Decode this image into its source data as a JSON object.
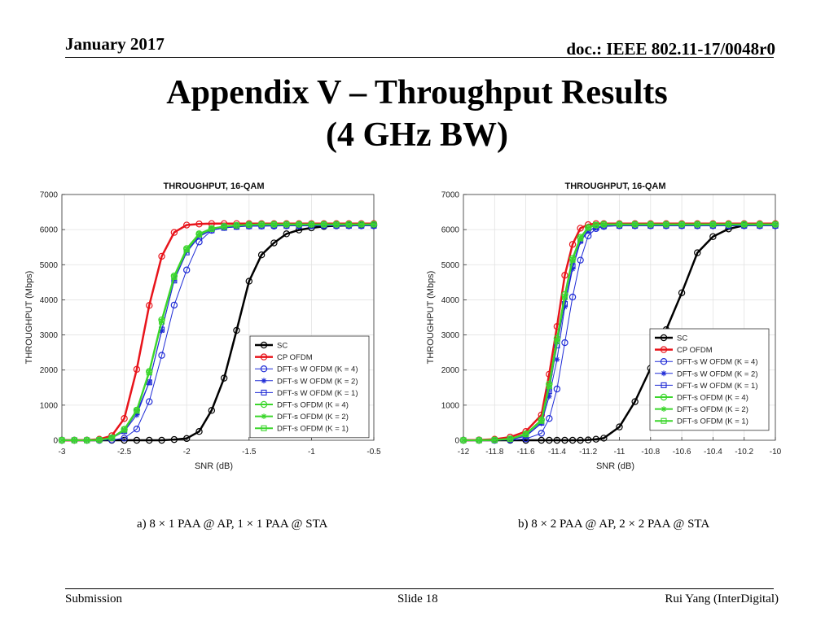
{
  "header": {
    "date": "January 2017",
    "doc": "doc.: IEEE 802.11-17/0048r0"
  },
  "title": {
    "line1": "Appendix V – Throughput Results",
    "line2": "(4 GHz BW)"
  },
  "captions": {
    "a": "a) 8 × 1 PAA @ AP, 1 × 1 PAA @ STA",
    "b": "b) 8 × 2 PAA @ AP, 2 × 2 PAA @ STA"
  },
  "footer": {
    "left": "Submission",
    "center": "Slide 18",
    "right": "Rui Yang (InterDigital)"
  },
  "chart_data": [
    {
      "type": "line",
      "title": "THROUGHPUT, 16-QAM",
      "xlabel": "SNR (dB)",
      "ylabel": "THROUGHPUT (Mbps)",
      "xlim": [
        -3,
        -0.5
      ],
      "ylim": [
        0,
        7000
      ],
      "xticks": [
        -3,
        -2.5,
        -2,
        -1.5,
        -1,
        -0.5
      ],
      "xtick_labels": [
        "-3",
        "-2.5",
        "-2",
        "-1.5",
        "-1",
        "-0.5"
      ],
      "yticks": [
        0,
        1000,
        2000,
        3000,
        4000,
        5000,
        6000,
        7000
      ],
      "grid": true,
      "legend": "center-right",
      "x": [
        -3,
        -2.9,
        -2.8,
        -2.7,
        -2.6,
        -2.5,
        -2.4,
        -2.3,
        -2.2,
        -2.1,
        -2.0,
        -1.9,
        -1.8,
        -1.7,
        -1.6,
        -1.5,
        -1.4,
        -1.3,
        -1.2,
        -1.1,
        -1.0,
        -0.9,
        -0.8,
        -0.7,
        -0.6,
        -0.5
      ],
      "series": [
        {
          "name": "SC",
          "color": "#000000",
          "marker": "circle",
          "width": 2.5,
          "values": [
            0,
            0,
            0,
            0,
            0,
            0,
            0,
            0,
            0,
            20,
            50,
            250,
            850,
            1770,
            3130,
            4530,
            5280,
            5620,
            5880,
            5990,
            6050,
            6090,
            6110,
            6120,
            6130,
            6130
          ]
        },
        {
          "name": "CP OFDM",
          "color": "#e8141b",
          "marker": "circle",
          "width": 2.5,
          "values": [
            0,
            0,
            5,
            30,
            130,
            620,
            2020,
            3840,
            5240,
            5920,
            6130,
            6160,
            6170,
            6170,
            6170,
            6170,
            6170,
            6170,
            6170,
            6170,
            6170,
            6170,
            6170,
            6170,
            6170,
            6170
          ]
        },
        {
          "name": "DFT-s W OFDM (K = 4)",
          "color": "#1f2bd6",
          "marker": "circle",
          "width": 1,
          "values": [
            0,
            0,
            0,
            0,
            10,
            60,
            320,
            1100,
            2420,
            3850,
            4850,
            5650,
            5980,
            6060,
            6090,
            6100,
            6100,
            6100,
            6110,
            6110,
            6110,
            6110,
            6110,
            6110,
            6110,
            6110
          ]
        },
        {
          "name": "DFT-s W OFDM (K = 2)",
          "color": "#1f2bd6",
          "marker": "star",
          "width": 1,
          "values": [
            0,
            0,
            0,
            10,
            60,
            250,
            720,
            1650,
            3120,
            4560,
            5380,
            5820,
            5990,
            6050,
            6080,
            6100,
            6100,
            6110,
            6110,
            6110,
            6110,
            6110,
            6110,
            6110,
            6110,
            6110
          ]
        },
        {
          "name": "DFT-s W OFDM (K = 1)",
          "color": "#1f2bd6",
          "marker": "square",
          "width": 1,
          "values": [
            0,
            0,
            0,
            10,
            60,
            260,
            800,
            1650,
            3150,
            4550,
            5350,
            5800,
            5980,
            6050,
            6080,
            6100,
            6100,
            6110,
            6110,
            6110,
            6110,
            6110,
            6110,
            6110,
            6110,
            6110
          ]
        },
        {
          "name": "DFT-s OFDM (K = 4)",
          "color": "#3bd62c",
          "marker": "circle",
          "width": 2,
          "values": [
            0,
            0,
            0,
            10,
            70,
            310,
            860,
            1960,
            3430,
            4680,
            5460,
            5880,
            6030,
            6090,
            6120,
            6140,
            6150,
            6150,
            6150,
            6150,
            6150,
            6150,
            6150,
            6150,
            6150,
            6150
          ]
        },
        {
          "name": "DFT-s OFDM (K = 2)",
          "color": "#3bd62c",
          "marker": "star",
          "width": 2,
          "values": [
            0,
            0,
            0,
            10,
            70,
            300,
            850,
            1940,
            3400,
            4660,
            5440,
            5870,
            6030,
            6090,
            6120,
            6140,
            6150,
            6150,
            6150,
            6150,
            6150,
            6150,
            6150,
            6150,
            6150,
            6150
          ]
        },
        {
          "name": "DFT-s OFDM (K = 1)",
          "color": "#3bd62c",
          "marker": "square",
          "width": 2,
          "values": [
            0,
            0,
            0,
            10,
            70,
            300,
            840,
            1930,
            3380,
            4650,
            5430,
            5860,
            6020,
            6090,
            6120,
            6140,
            6150,
            6150,
            6150,
            6150,
            6150,
            6150,
            6150,
            6150,
            6150,
            6150
          ]
        }
      ]
    },
    {
      "type": "line",
      "title": "THROUGHPUT, 16-QAM",
      "xlabel": "SNR (dB)",
      "ylabel": "THROUGHPUT (Mbps)",
      "xlim": [
        -12,
        -10
      ],
      "ylim": [
        0,
        7000
      ],
      "xticks": [
        -12,
        -11.8,
        -11.6,
        -11.4,
        -11.2,
        -11,
        -10.8,
        -10.6,
        -10.4,
        -10.2,
        -10
      ],
      "xtick_labels": [
        "-12",
        "-11.8",
        "-11.6",
        "-11.4",
        "-11.2",
        "-11",
        "-10.8",
        "-10.6",
        "-10.4",
        "-10.2",
        "-10"
      ],
      "yticks": [
        0,
        1000,
        2000,
        3000,
        4000,
        5000,
        6000,
        7000
      ],
      "grid": true,
      "legend": "center-right",
      "x": [
        -12,
        -11.9,
        -11.8,
        -11.7,
        -11.6,
        -11.5,
        -11.45,
        -11.4,
        -11.35,
        -11.3,
        -11.25,
        -11.2,
        -11.15,
        -11.1,
        -11.0,
        -10.9,
        -10.8,
        -10.7,
        -10.6,
        -10.5,
        -10.4,
        -10.3,
        -10.2,
        -10.1,
        -10.0
      ],
      "series": [
        {
          "name": "SC",
          "color": "#000000",
          "marker": "circle",
          "width": 2.5,
          "values": [
            0,
            0,
            0,
            0,
            0,
            0,
            0,
            0,
            0,
            0,
            0,
            10,
            30,
            60,
            380,
            1100,
            2050,
            3150,
            4200,
            5340,
            5800,
            6020,
            6120,
            6150,
            6160
          ]
        },
        {
          "name": "CP OFDM",
          "color": "#e8141b",
          "marker": "circle",
          "width": 2.5,
          "values": [
            0,
            10,
            30,
            90,
            250,
            720,
            1880,
            3240,
            4700,
            5580,
            6040,
            6140,
            6170,
            6170,
            6170,
            6170,
            6170,
            6170,
            6170,
            6170,
            6170,
            6170,
            6170,
            6170,
            6170
          ]
        },
        {
          "name": "DFT-s W OFDM (K = 4)",
          "color": "#1f2bd6",
          "marker": "circle",
          "width": 1,
          "values": [
            0,
            0,
            0,
            10,
            40,
            200,
            620,
            1460,
            2780,
            4080,
            5130,
            5820,
            6030,
            6090,
            6110,
            6110,
            6110,
            6110,
            6110,
            6110,
            6110,
            6110,
            6110,
            6110,
            6110
          ]
        },
        {
          "name": "DFT-s W OFDM (K = 2)",
          "color": "#1f2bd6",
          "marker": "star",
          "width": 1,
          "values": [
            0,
            0,
            0,
            20,
            110,
            480,
            1250,
            2300,
            3800,
            4880,
            5650,
            5960,
            6060,
            6100,
            6110,
            6110,
            6110,
            6110,
            6110,
            6110,
            6110,
            6110,
            6110,
            6110,
            6110
          ]
        },
        {
          "name": "DFT-s W OFDM (K = 1)",
          "color": "#1f2bd6",
          "marker": "square",
          "width": 1,
          "values": [
            0,
            0,
            0,
            20,
            120,
            500,
            1400,
            2700,
            3880,
            4960,
            5690,
            5980,
            6060,
            6100,
            6110,
            6110,
            6110,
            6110,
            6110,
            6110,
            6110,
            6110,
            6110,
            6110,
            6110
          ]
        },
        {
          "name": "DFT-s OFDM (K = 4)",
          "color": "#3bd62c",
          "marker": "circle",
          "width": 2,
          "values": [
            0,
            0,
            10,
            40,
            180,
            580,
            1600,
            2900,
            4150,
            5180,
            5780,
            6060,
            6130,
            6150,
            6150,
            6150,
            6150,
            6150,
            6150,
            6150,
            6150,
            6150,
            6150,
            6150,
            6150
          ]
        },
        {
          "name": "DFT-s OFDM (K = 2)",
          "color": "#3bd62c",
          "marker": "star",
          "width": 2,
          "values": [
            0,
            0,
            10,
            40,
            170,
            560,
            1560,
            2850,
            4100,
            5150,
            5760,
            6050,
            6130,
            6150,
            6150,
            6150,
            6150,
            6150,
            6150,
            6150,
            6150,
            6150,
            6150,
            6150,
            6150
          ]
        },
        {
          "name": "DFT-s OFDM (K = 1)",
          "color": "#3bd62c",
          "marker": "square",
          "width": 2,
          "values": [
            0,
            0,
            10,
            40,
            170,
            550,
            1540,
            2820,
            4080,
            5140,
            5750,
            6050,
            6130,
            6150,
            6150,
            6150,
            6150,
            6150,
            6150,
            6150,
            6150,
            6150,
            6150,
            6150,
            6150
          ]
        }
      ]
    }
  ]
}
